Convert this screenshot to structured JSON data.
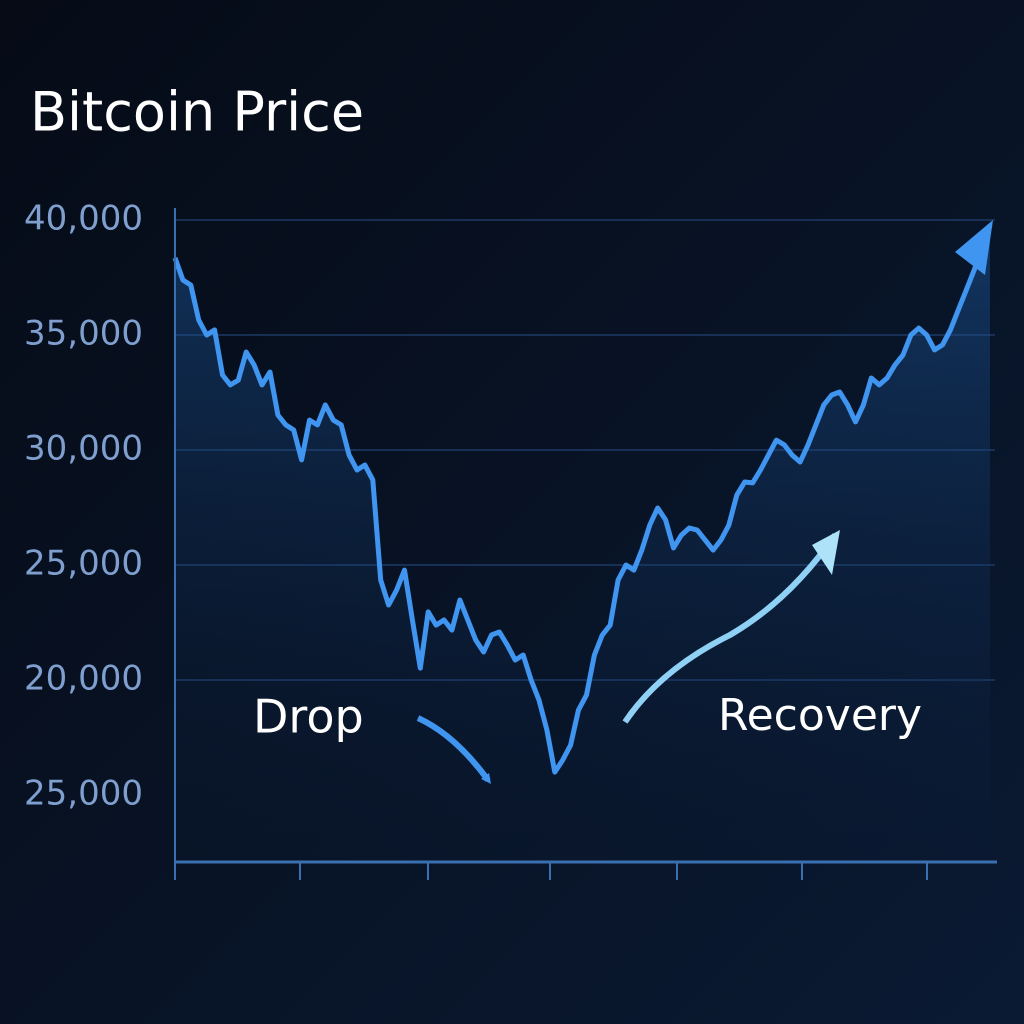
{
  "chart_data": {
    "type": "line",
    "title": "Bitcoin Price",
    "ylim": [
      12090,
      40520
    ],
    "yticks": [
      {
        "value": 40000,
        "label": "40,000"
      },
      {
        "value": 35000,
        "label": "35,000"
      },
      {
        "value": 30000,
        "label": "30,000"
      },
      {
        "value": 25000,
        "label": "25,000"
      },
      {
        "value": 20000,
        "label": "20,000"
      }
    ],
    "extra_ytick_label": "25,000",
    "grid": true,
    "color": "#3f95f0",
    "values": [
      38350,
      37390,
      37170,
      35650,
      35000,
      35220,
      33260,
      32830,
      33040,
      34260,
      33700,
      32830,
      33390,
      31520,
      31090,
      30870,
      29570,
      31300,
      31090,
      31960,
      31300,
      31090,
      29780,
      29130,
      29350,
      28700,
      24350,
      23260,
      23910,
      24780,
      22610,
      20520,
      22960,
      22390,
      22610,
      22170,
      23480,
      22610,
      21740,
      21220,
      21960,
      22090,
      21520,
      20870,
      21090,
      20000,
      19130,
      17830,
      16000,
      16520,
      17170,
      18700,
      19350,
      21090,
      21960,
      22390,
      24350,
      25000,
      24780,
      25650,
      26740,
      27480,
      26960,
      25740,
      26300,
      26610,
      26520,
      26090,
      25650,
      26090,
      26740,
      28040,
      28610,
      28570,
      29130,
      29780,
      30430,
      30220,
      29780,
      29480,
      30220,
      31090,
      31960,
      32390,
      32520,
      31960,
      31220,
      31960,
      33130,
      32830,
      33130,
      33700,
      34130,
      35000,
      35300,
      35000,
      34350,
      34570,
      35220,
      36090,
      36960,
      37830,
      38700,
      39780
    ],
    "annotations": [
      "Drop",
      "Recovery"
    ]
  }
}
